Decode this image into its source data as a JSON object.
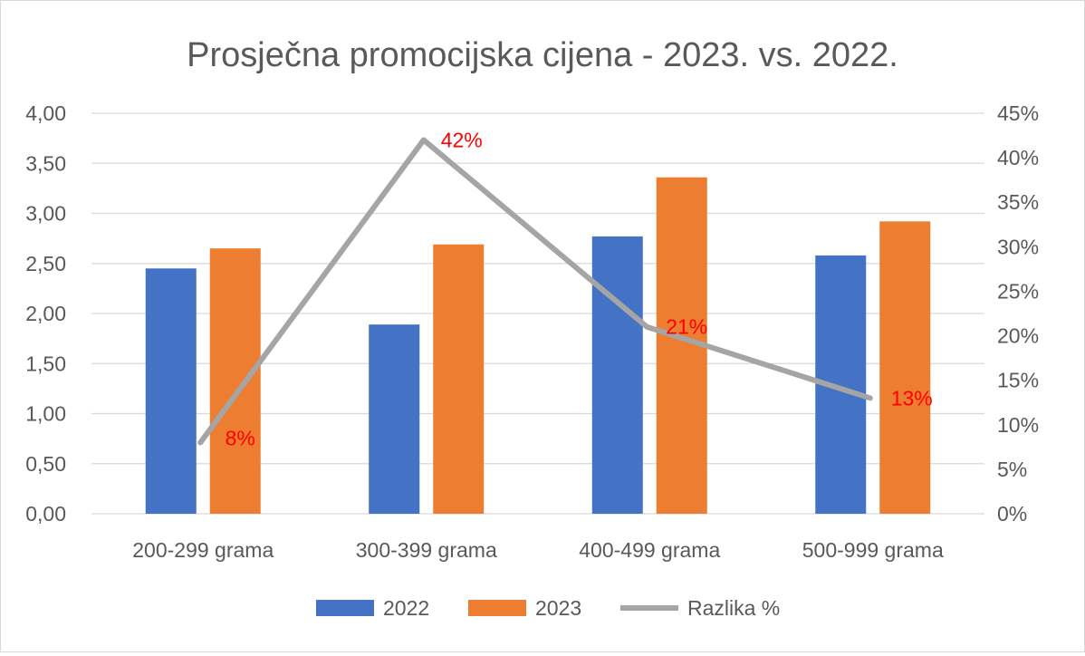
{
  "chart_data": {
    "type": "bar",
    "title": "Prosječna promocijska cijena - 2023. vs. 2022.",
    "categories": [
      "200-299 grama",
      "300-399 grama",
      "400-499 grama",
      "500-999 grama"
    ],
    "series": [
      {
        "name": "2022",
        "type": "bar",
        "axis": "left",
        "color": "#4472C4",
        "values": [
          2.45,
          1.89,
          2.77,
          2.58
        ]
      },
      {
        "name": "2023",
        "type": "bar",
        "axis": "left",
        "color": "#ED7D31",
        "values": [
          2.65,
          2.69,
          3.36,
          2.92
        ]
      },
      {
        "name": "Razlika %",
        "type": "line",
        "axis": "right",
        "color": "#A5A5A5",
        "values": [
          8,
          42,
          21,
          13
        ],
        "data_labels": [
          "8%",
          "42%",
          "21%",
          "13%"
        ],
        "label_color": "#FF0000"
      }
    ],
    "y_left": {
      "ylim": [
        0,
        4
      ],
      "ticks": [
        "0,00",
        "0,50",
        "1,00",
        "1,50",
        "2,00",
        "2,50",
        "3,00",
        "3,50",
        "4,00"
      ]
    },
    "y_right": {
      "ylim": [
        0,
        45
      ],
      "ticks": [
        "0%",
        "5%",
        "10%",
        "15%",
        "20%",
        "25%",
        "30%",
        "35%",
        "40%",
        "45%"
      ]
    },
    "grid": true,
    "legend": "bottom"
  }
}
